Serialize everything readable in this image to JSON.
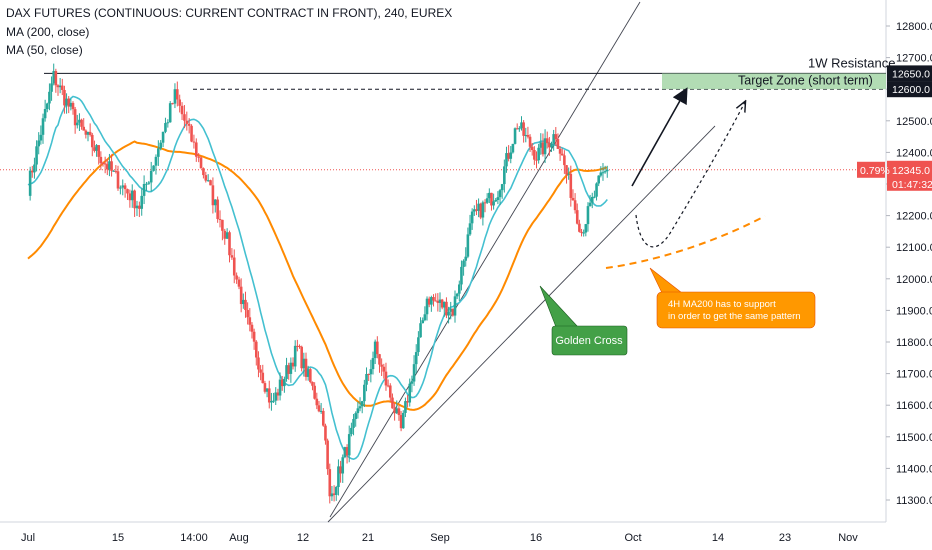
{
  "header": {
    "title": "DAX FUTURES (CONTINUOUS: CURRENT CONTRACT IN FRONT), 240, EUREX",
    "ma200_label": "MA (200, close)",
    "ma50_label": "MA (50, close)"
  },
  "colors": {
    "up": "#26a69a",
    "down": "#ef5350",
    "ma200": "#ff8a00",
    "ma50": "#44c0d0",
    "target_fill": "#a5d6a7",
    "badge_price": "#ef5350",
    "golden_cross": "#43a047",
    "ma_note": "#ff9800"
  },
  "chart_data": {
    "type": "candlestick",
    "y_axis": {
      "ylim": [
        11250,
        12870
      ],
      "ticks": [
        11300,
        11400,
        11500,
        11600,
        11700,
        11800,
        11900,
        12000,
        12100,
        12200,
        12300,
        12400,
        12500,
        12600,
        12700,
        12800
      ]
    },
    "x_axis": {
      "tick_labels": [
        "Jul",
        "15",
        "14:00",
        "Aug",
        "12",
        "21",
        "Sep",
        "16",
        "Oct",
        "14",
        "23",
        "Nov"
      ]
    },
    "price_badges": {
      "resistance": "12650.0",
      "target": "12600.0",
      "change_pct": "0.79%",
      "last_price": "12345.0",
      "countdown": "01:47:32"
    },
    "last_price": 12345,
    "resistance_level": 12650,
    "dashed_level": 12600,
    "key_points": [
      {
        "date": "Jul 1",
        "price": 12290
      },
      {
        "date": "Jul 5",
        "price": 12640
      },
      {
        "date": "Jul 9",
        "price": 12480
      },
      {
        "date": "Jul 15",
        "price": 12310
      },
      {
        "date": "Jul 18",
        "price": 12230
      },
      {
        "date": "Jul 23",
        "price": 12580
      },
      {
        "date": "Jul 26",
        "price": 12400
      },
      {
        "date": "Jul 30",
        "price": 12150
      },
      {
        "date": "Aug 2",
        "price": 11880
      },
      {
        "date": "Aug 6",
        "price": 11600
      },
      {
        "date": "Aug 10",
        "price": 11780
      },
      {
        "date": "Aug 14",
        "price": 11560
      },
      {
        "date": "Aug 15",
        "price": 11300
      },
      {
        "date": "Aug 19",
        "price": 11550
      },
      {
        "date": "Aug 22",
        "price": 11780
      },
      {
        "date": "Aug 26",
        "price": 11520
      },
      {
        "date": "Aug 30",
        "price": 11940
      },
      {
        "date": "Sep 3",
        "price": 11900
      },
      {
        "date": "Sep 6",
        "price": 12190
      },
      {
        "date": "Sep 10",
        "price": 12280
      },
      {
        "date": "Sep 13",
        "price": 12490
      },
      {
        "date": "Sep 16",
        "price": 12390
      },
      {
        "date": "Sep 19",
        "price": 12460
      },
      {
        "date": "Sep 23",
        "price": 12150
      },
      {
        "date": "Sep 26",
        "price": 12320
      },
      {
        "date": "Sep 27",
        "price": 12345
      }
    ],
    "annotations": {
      "resistance": "1W Resistance",
      "target_zone": "Target Zone (short term)",
      "golden_cross": "Golden Cross",
      "ma200_note_line1": "4H MA200 has to support",
      "ma200_note_line2": "in order to get the same pattern"
    }
  }
}
